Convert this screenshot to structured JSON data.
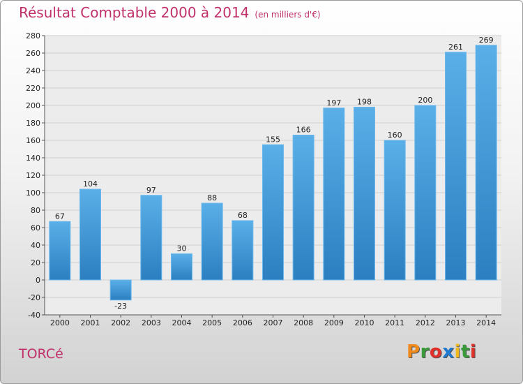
{
  "header": {
    "title": "Résultat Comptable 2000 à 2014",
    "unit": "(en milliers d'€)"
  },
  "footer": {
    "commune": "TORCé",
    "logo": "Proxiti"
  },
  "colors": {
    "accent": "#c0306a",
    "bar_light": "#5aafe8",
    "bar_dark": "#2c7fc0",
    "logo_letters": [
      "#f08a1c",
      "#3a9a3a",
      "#e0302a",
      "#1f7ad0",
      "#f0b81c",
      "#3a9a3a",
      "#e0302a"
    ]
  },
  "chart_data": {
    "type": "bar",
    "title": "Résultat Comptable 2000 à 2014",
    "subtitle": "(en milliers d'€)",
    "categories": [
      "2000",
      "2001",
      "2002",
      "2003",
      "2004",
      "2005",
      "2006",
      "2007",
      "2008",
      "2009",
      "2010",
      "2011",
      "2012",
      "2013",
      "2014"
    ],
    "values": [
      67,
      104,
      -23,
      97,
      30,
      88,
      68,
      155,
      166,
      197,
      198,
      160,
      200,
      261,
      269
    ],
    "ylim": [
      -40,
      280
    ],
    "yticks": [
      -40,
      -20,
      0,
      20,
      40,
      60,
      80,
      100,
      120,
      140,
      160,
      180,
      200,
      220,
      240,
      260,
      280
    ],
    "grid": true,
    "legend": "none"
  }
}
